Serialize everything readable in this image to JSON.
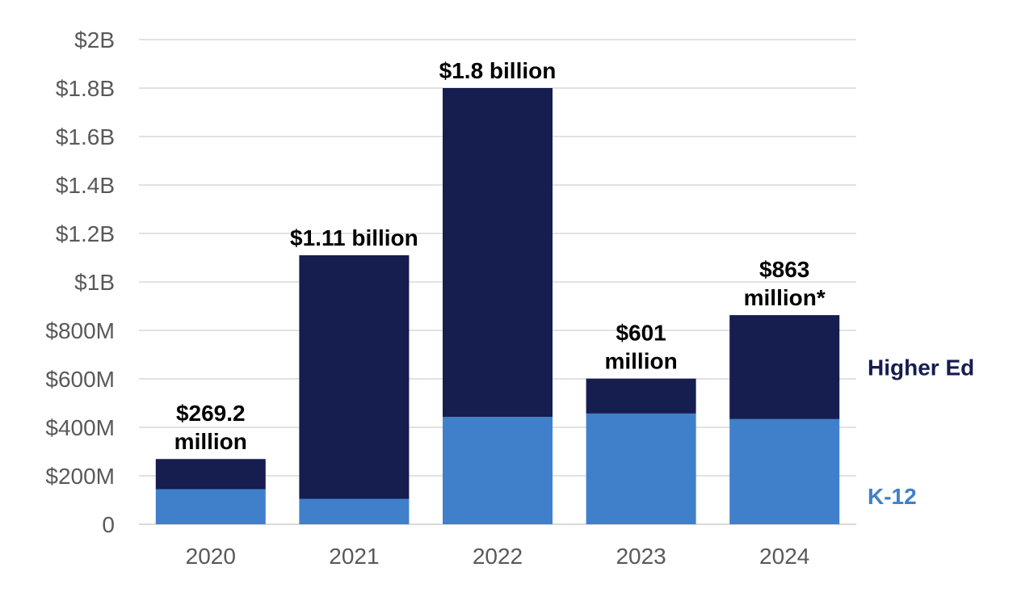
{
  "chart_data": {
    "type": "bar",
    "stacked": true,
    "categories": [
      "2020",
      "2021",
      "2022",
      "2023",
      "2024"
    ],
    "series": [
      {
        "name": "K-12",
        "color": "#4080cb",
        "values": [
          145,
          105,
          443,
          457,
          434
        ]
      },
      {
        "name": "Higher Ed",
        "color": "#161d4f",
        "values": [
          124.2,
          1005,
          1357,
          144,
          429
        ]
      }
    ],
    "data_labels": [
      [
        "$269.2",
        "million"
      ],
      [
        "$1.11 billion"
      ],
      [
        "$1.8 billion"
      ],
      [
        "$601",
        "million"
      ],
      [
        "$863",
        "million*"
      ]
    ],
    "yticks": [
      {
        "value": 0,
        "label": "0"
      },
      {
        "value": 200,
        "label": "$200M"
      },
      {
        "value": 400,
        "label": "$400M"
      },
      {
        "value": 600,
        "label": "$600M"
      },
      {
        "value": 800,
        "label": "$800M"
      },
      {
        "value": 1000,
        "label": "$1B"
      },
      {
        "value": 1200,
        "label": "$1.2B"
      },
      {
        "value": 1400,
        "label": "$1.4B"
      },
      {
        "value": 1600,
        "label": "$1.6B"
      },
      {
        "value": 1800,
        "label": "$1.8B"
      },
      {
        "value": 2000,
        "label": "$2B"
      }
    ],
    "ylim": [
      0,
      2000
    ],
    "y_units": "millions of dollars",
    "grid": true,
    "legend": "right",
    "title": "",
    "xlabel": "",
    "ylabel": ""
  }
}
